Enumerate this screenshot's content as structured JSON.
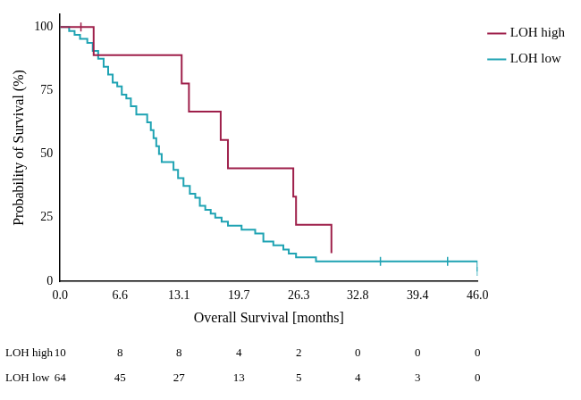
{
  "chart_data": {
    "type": "line",
    "line_style": "step",
    "x_label": "Overall Survival [months]",
    "y_label": "Probability of Survival (%)",
    "xlim": [
      0,
      46
    ],
    "ylim": [
      0,
      105
    ],
    "xticks": [
      {
        "value": 0,
        "label": "0.0"
      },
      6.6,
      13.1,
      19.7,
      26.3,
      32.8,
      39.4,
      {
        "value": 46,
        "label": "46.0"
      }
    ],
    "yticks": [
      0,
      25,
      50,
      75,
      100
    ],
    "grid": false,
    "legend": "top right",
    "series": [
      {
        "name": "LOH high",
        "color": "#9e1f4a",
        "marker": "|",
        "x": [
          0,
          3.7,
          13.4,
          14.2,
          17.7,
          18.5,
          25.7,
          26.0,
          29.9
        ],
        "values": [
          100,
          88.9,
          77.8,
          66.7,
          55.6,
          44.4,
          33.3,
          22.2,
          11.1
        ],
        "censored": {
          "x": [
            2.3
          ],
          "values": [
            100
          ]
        }
      },
      {
        "name": "LOH low",
        "color": "#1fa3b3",
        "marker": "|",
        "x": [
          0,
          1.0,
          1.6,
          2.2,
          3.0,
          3.6,
          4.2,
          4.8,
          5.3,
          5.8,
          6.3,
          6.8,
          7.3,
          7.8,
          8.4,
          9.6,
          10.0,
          10.3,
          10.6,
          10.9,
          11.2,
          12.5,
          13.0,
          13.6,
          14.3,
          14.9,
          15.4,
          16.0,
          16.6,
          17.1,
          17.8,
          18.5,
          20.0,
          21.5,
          22.4,
          23.5,
          24.6,
          25.2,
          26.0,
          28.2,
          46.0
        ],
        "values": [
          100,
          98.4,
          96.9,
          95.3,
          93.8,
          90.6,
          87.5,
          84.4,
          81.3,
          78.1,
          76.6,
          73.4,
          71.9,
          68.8,
          65.6,
          62.5,
          59.4,
          56.3,
          53.1,
          50.0,
          46.9,
          43.8,
          40.6,
          37.5,
          34.4,
          32.8,
          29.7,
          28.1,
          26.6,
          25.0,
          23.4,
          21.9,
          20.3,
          18.8,
          15.6,
          14.1,
          12.5,
          10.9,
          9.4,
          7.8,
          3.9
        ],
        "censored": {
          "x": [
            35.3,
            42.7,
            46.0
          ],
          "values": [
            7.8,
            7.8,
            3.9
          ]
        }
      }
    ],
    "risk_table": {
      "rows": [
        {
          "label": "LOH high",
          "values": [
            10,
            8,
            8,
            4,
            2,
            0,
            0,
            0
          ]
        },
        {
          "label": "LOH low",
          "values": [
            64,
            45,
            27,
            13,
            5,
            4,
            3,
            0
          ]
        }
      ]
    }
  }
}
